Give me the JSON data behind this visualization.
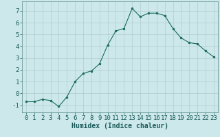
{
  "x": [
    0,
    1,
    2,
    3,
    4,
    5,
    6,
    7,
    8,
    9,
    10,
    11,
    12,
    13,
    14,
    15,
    16,
    17,
    18,
    19,
    20,
    21,
    22,
    23
  ],
  "y": [
    -0.7,
    -0.7,
    -0.5,
    -0.6,
    -1.1,
    -0.3,
    1.0,
    1.7,
    1.9,
    2.5,
    4.1,
    5.3,
    5.5,
    7.2,
    6.5,
    6.8,
    6.8,
    6.6,
    5.5,
    4.7,
    4.3,
    4.2,
    3.6,
    3.1
  ],
  "line_color": "#1a6b5a",
  "marker": "o",
  "markersize": 2.0,
  "linewidth": 0.8,
  "bg_color": "#cce8ea",
  "grid_color": "#b0cccc",
  "xlabel": "Humidex (Indice chaleur)",
  "xlim": [
    -0.5,
    23.5
  ],
  "ylim": [
    -1.6,
    7.8
  ],
  "yticks": [
    -1,
    0,
    1,
    2,
    3,
    4,
    5,
    6,
    7
  ],
  "xtick_labels": [
    "0",
    "1",
    "2",
    "3",
    "4",
    "5",
    "6",
    "7",
    "8",
    "9",
    "10",
    "11",
    "12",
    "13",
    "14",
    "15",
    "16",
    "17",
    "18",
    "19",
    "20",
    "21",
    "22",
    "23"
  ],
  "xlabel_fontsize": 7,
  "tick_fontsize": 6.5
}
